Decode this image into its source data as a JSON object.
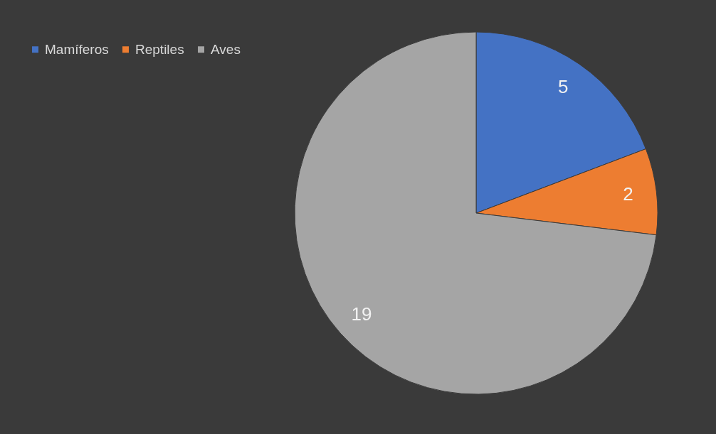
{
  "chart_data": {
    "type": "pie",
    "categories": [
      "Mamíferos",
      "Reptiles",
      "Aves"
    ],
    "values": [
      5,
      2,
      19
    ],
    "colors": [
      "#4472c4",
      "#ed7d31",
      "#a5a5a5"
    ],
    "data_labels": true,
    "legend": "top left"
  }
}
